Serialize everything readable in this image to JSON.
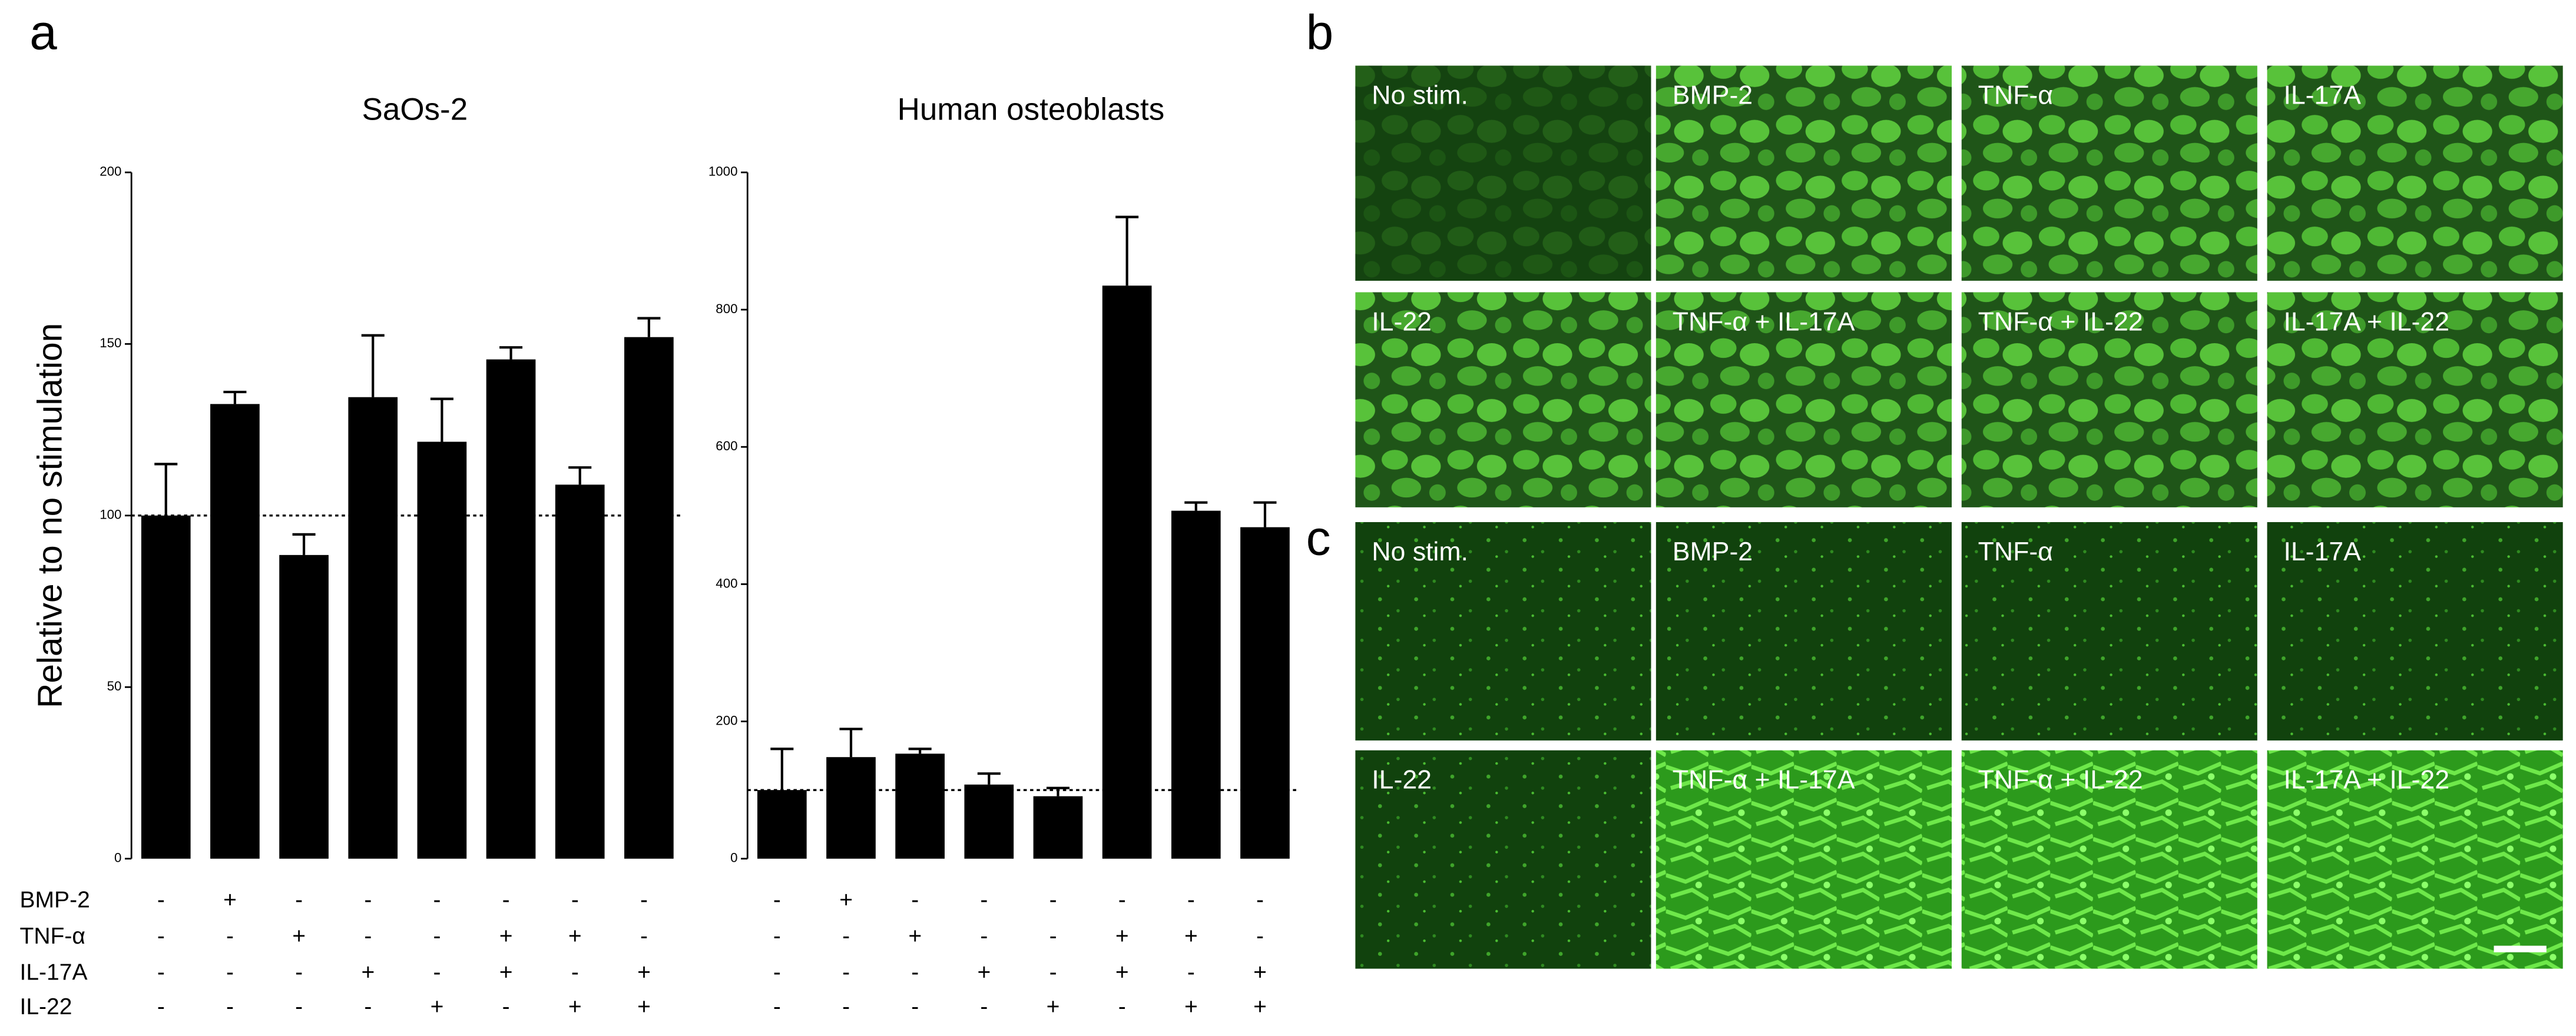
{
  "panel_a_label": "a",
  "treatment_labels": [
    "BMP-2",
    "TNF-α",
    "IL-17A",
    "IL-22"
  ],
  "chart_data": [
    {
      "type": "bar",
      "title": "SaOs-2",
      "ylabel": "Relative to no stimulation",
      "values": [
        100,
        132.5,
        88.5,
        134.5,
        121.5,
        145.5,
        109,
        152
      ],
      "errors": [
        15,
        3.5,
        6,
        18,
        12.5,
        3.5,
        5,
        5.5
      ],
      "color": "#000000",
      "ylim": [
        0,
        200
      ],
      "yticks": [
        0,
        50,
        100,
        150,
        200
      ],
      "reference_line": 100,
      "signs": [
        [
          "-",
          "+",
          "-",
          "-",
          "-",
          "-",
          "-",
          "-"
        ],
        [
          "-",
          "-",
          "+",
          "-",
          "-",
          "+",
          "+",
          "-"
        ],
        [
          "-",
          "-",
          "-",
          "+",
          "-",
          "+",
          "-",
          "+"
        ],
        [
          "-",
          "-",
          "-",
          "-",
          "+",
          "-",
          "+",
          "+"
        ]
      ]
    },
    {
      "type": "bar",
      "title": "Human osteoblasts",
      "values": [
        100,
        148,
        153,
        108,
        91,
        835,
        507,
        483
      ],
      "errors": [
        60,
        41,
        7,
        16,
        12,
        100,
        12,
        36
      ],
      "color": "#000000",
      "ylim": [
        0,
        1000
      ],
      "yticks": [
        0,
        200,
        400,
        600,
        800,
        1000
      ],
      "reference_line": 100,
      "signs": [
        [
          "-",
          "+",
          "-",
          "-",
          "-",
          "-",
          "-",
          "-"
        ],
        [
          "-",
          "-",
          "+",
          "-",
          "-",
          "+",
          "+",
          "-"
        ],
        [
          "-",
          "-",
          "-",
          "+",
          "-",
          "+",
          "-",
          "+"
        ],
        [
          "-",
          "-",
          "-",
          "-",
          "+",
          "-",
          "+",
          "+"
        ]
      ]
    }
  ],
  "panel_b": {
    "label": "b",
    "tiles": [
      "No stim.",
      "BMP-2",
      "TNF-α",
      "IL-17A",
      "IL-22",
      "TNF-α + IL-17A",
      "TNF-α + IL-22",
      "IL-17A + IL-22"
    ]
  },
  "panel_c": {
    "label": "c",
    "tiles": [
      "No stim.",
      "BMP-2",
      "TNF-α",
      "IL-17A",
      "IL-22",
      "TNF-α + IL-17A",
      "TNF-α + IL-22",
      "IL-17A + IL-22"
    ]
  }
}
